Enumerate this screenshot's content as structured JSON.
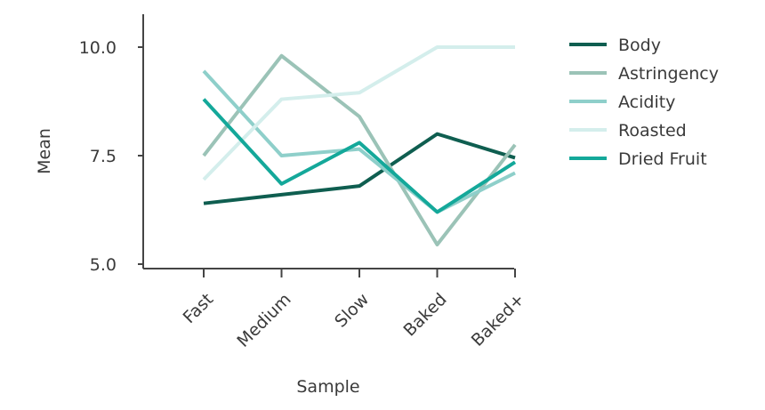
{
  "chart_data": {
    "type": "line",
    "title": "",
    "xlabel": "Sample",
    "ylabel": "Mean",
    "categories": [
      "Fast",
      "Medium",
      "Slow",
      "Baked",
      "Baked+"
    ],
    "ylim": [
      5.0,
      10.0
    ],
    "yticks": [
      "5.0",
      "7.5",
      "10.0"
    ],
    "grid": false,
    "legend_position": "right",
    "series": [
      {
        "name": "Body",
        "color": "#0f5e50",
        "values": [
          6.4,
          6.6,
          6.8,
          8.0,
          7.45
        ]
      },
      {
        "name": "Astringency",
        "color": "#9bc3b7",
        "values": [
          7.5,
          9.8,
          8.4,
          5.45,
          7.75
        ]
      },
      {
        "name": "Acidity",
        "color": "#8ecfca",
        "values": [
          9.45,
          7.5,
          7.65,
          6.2,
          7.1
        ]
      },
      {
        "name": "Roasted",
        "color": "#d4eeec",
        "values": [
          6.95,
          8.8,
          8.95,
          10.0,
          10.0
        ]
      },
      {
        "name": "Dried Fruit",
        "color": "#14a89a",
        "values": [
          8.8,
          6.85,
          7.8,
          6.2,
          7.35
        ]
      }
    ]
  }
}
